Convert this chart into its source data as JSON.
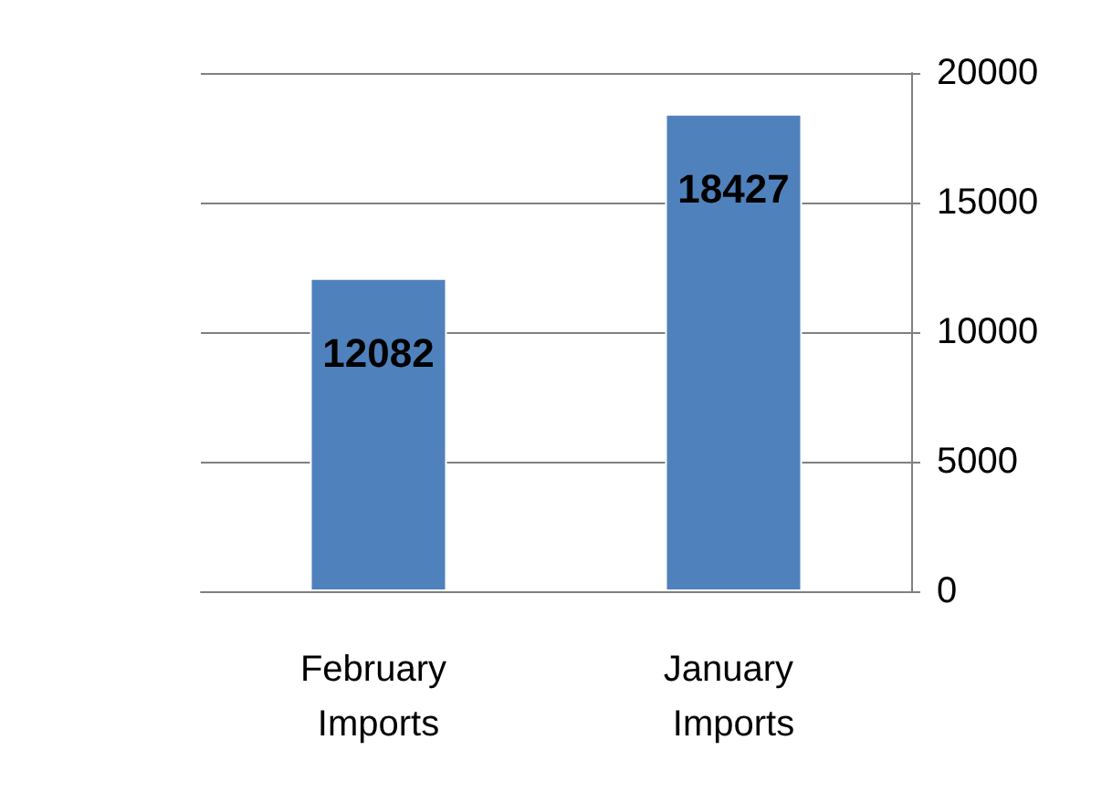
{
  "chart_data": {
    "type": "bar",
    "categories": [
      "February Imports",
      "January Imports"
    ],
    "values": [
      12082,
      18427
    ],
    "color": "#4f81bd",
    "ylim": [
      0,
      20000
    ],
    "yticks": [
      0,
      5000,
      10000,
      15000,
      20000
    ],
    "grid": "y",
    "data_labels": true
  }
}
